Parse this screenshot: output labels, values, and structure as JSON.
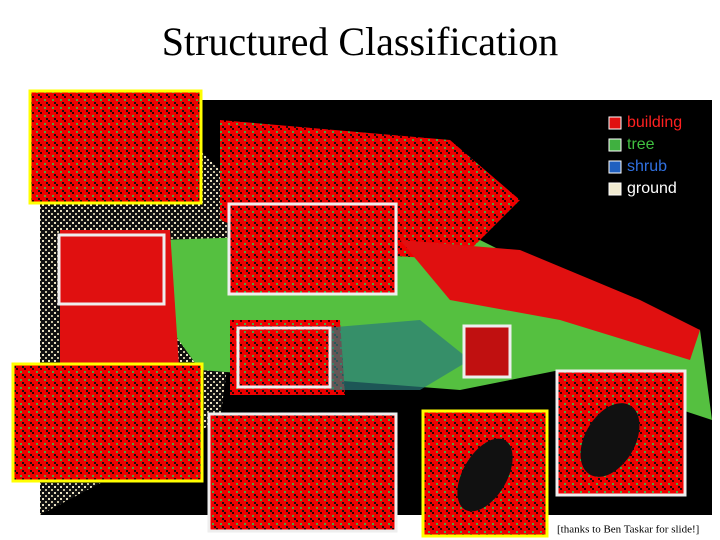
{
  "slide": {
    "title": "Structured Classification",
    "legend": [
      "building",
      "tree",
      "shrub",
      "ground"
    ],
    "credit": "[thanks to Ben Taskar for slide!]"
  }
}
